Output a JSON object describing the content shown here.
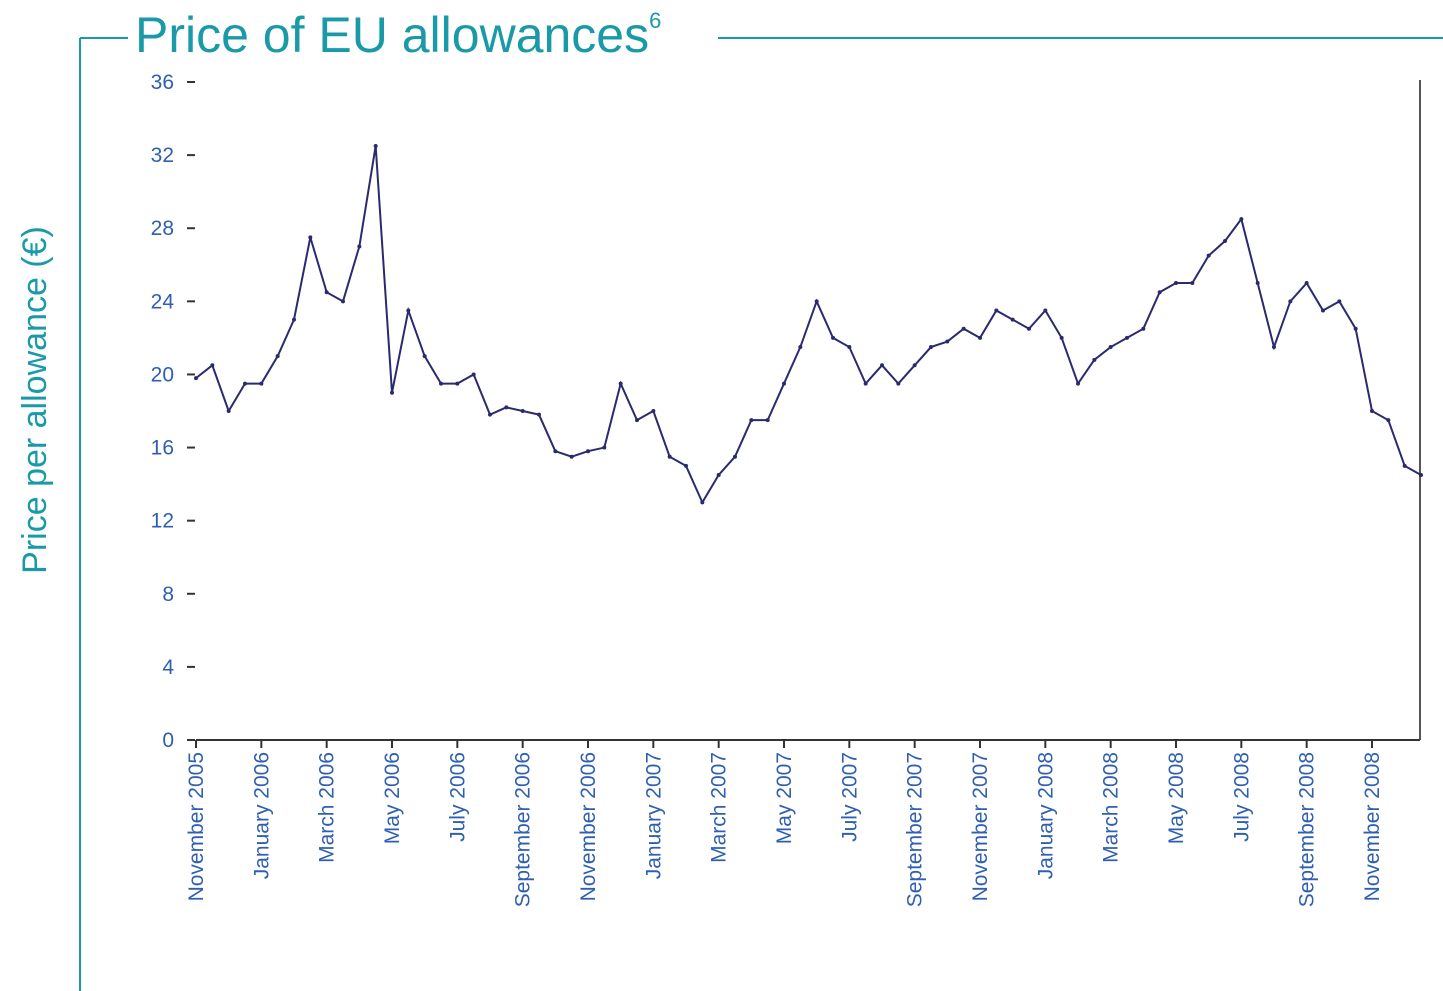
{
  "chart_data": {
    "type": "line",
    "title": "Price of EU allowances",
    "title_note": "6",
    "y_label": "Price per allowance (€)",
    "categories": [
      "November 2005",
      null,
      null,
      null,
      "January 2006",
      null,
      null,
      null,
      "March 2006",
      null,
      null,
      null,
      "May 2006",
      null,
      null,
      null,
      "July 2006",
      null,
      null,
      null,
      "September 2006",
      null,
      null,
      null,
      "November 2006",
      null,
      null,
      null,
      "January 2007",
      null,
      null,
      null,
      "March 2007",
      null,
      null,
      null,
      "May 2007",
      null,
      null,
      null,
      "July 2007",
      null,
      null,
      null,
      "September 2007",
      null,
      null,
      null,
      "November 2007",
      null,
      null,
      null,
      "January 2008",
      null,
      null,
      null,
      "March 2008",
      null,
      null,
      null,
      "May 2008",
      null,
      null,
      null,
      "July 2008",
      null,
      null,
      null,
      "September 2008",
      null,
      null,
      null,
      "November 2008",
      null,
      null,
      null
    ],
    "series": [
      {
        "name": "Price",
        "color": "#2a2a6e",
        "values": [
          19.8,
          20.5,
          18,
          19.5,
          19.5,
          21,
          23,
          27.5,
          24.5,
          24,
          27,
          32.5,
          19,
          23.5,
          21,
          19.5,
          19.5,
          20,
          17.8,
          18.2,
          18,
          17.8,
          15.8,
          15.5,
          15.8,
          16,
          19.5,
          17.5,
          18,
          15.5,
          15,
          13,
          14.5,
          15.5,
          17.5,
          17.5,
          19.5,
          21.5,
          24,
          22,
          21.5,
          19.5,
          20.5,
          19.5,
          20.5,
          21.5,
          21.8,
          22.5,
          22,
          23.5,
          23,
          22.5,
          23.5,
          22,
          19.5,
          20.8,
          21.5,
          22,
          22.5,
          24.5,
          25,
          25,
          26.5,
          27.3,
          28.5,
          25,
          21.5,
          24,
          25,
          23.5,
          24,
          22.5,
          18,
          17.5,
          15,
          14.5
        ]
      }
    ],
    "ylim": [
      0,
      36
    ],
    "yticks": [
      0,
      4,
      8,
      12,
      16,
      20,
      24,
      28,
      32,
      36
    ]
  }
}
